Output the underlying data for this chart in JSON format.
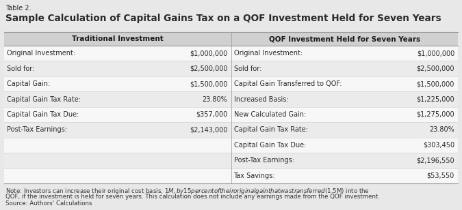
{
  "table_label": "Table 2.",
  "title": "Sample Calculation of Capital Gains Tax on a QOF Investment Held for Seven Years",
  "col_headers": [
    "Traditional Investment",
    "QOF Investment Held for Seven Years"
  ],
  "left_rows": [
    [
      "Original Investment:",
      "$1,000,000"
    ],
    [
      "Sold for:",
      "$2,500,000"
    ],
    [
      "Capital Gain:",
      "$1,500,000"
    ],
    [
      "Capital Gain Tax Rate:",
      "23.80%"
    ],
    [
      "Capital Gain Tax Due:",
      "$357,000"
    ],
    [
      "Post-Tax Earnings:",
      "$2,143,000"
    ]
  ],
  "right_rows": [
    [
      "Original Investment:",
      "$1,000,000"
    ],
    [
      "Sold for:",
      "$2,500,000"
    ],
    [
      "Capital Gain Transferred to QOF:",
      "$1,500,000"
    ],
    [
      "Increased Basis:",
      "$1,225,000"
    ],
    [
      "New Calculated Gain:",
      "$1,275,000"
    ],
    [
      "Capital Gain Tax Rate:",
      "23.80%"
    ],
    [
      "Capital Gain Tax Due:",
      "$303,450"
    ],
    [
      "Post-Tax Earnings:",
      "$2,196,550"
    ],
    [
      "Tax Savings:",
      "$53,550"
    ]
  ],
  "note_line1": "Note: Investors can increase their original cost basis, $1M, by 15 percent of their original gain that was transferred ($1.5M) into the",
  "note_line2": "QOF, if the investment is held for seven years. This calculation does not include any earnings made from the QOF investment.",
  "note_line3": "Source: Authors' Calculations",
  "fig_bg": "#e8e8e8",
  "table_bg": "#ffffff",
  "header_bg": "#d0d0d0",
  "row_colors": [
    "#f7f7f7",
    "#ebebeb"
  ],
  "border_color": "#999999",
  "sep_color": "#cccccc",
  "text_color": "#2a2a2a",
  "header_text_color": "#1a1a1a",
  "note_color": "#333333"
}
